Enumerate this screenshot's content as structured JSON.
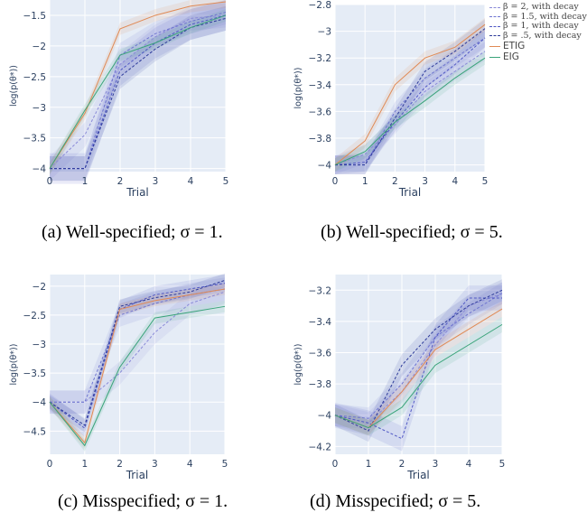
{
  "captions": [
    "(a) Well-specified; σ = 1.",
    "(b) Well-specified; σ = 5.",
    "(c) Misspecified; σ = 1.",
    "(d) Misspecified; σ = 5."
  ],
  "colors": {
    "b2": "#8a8ad8",
    "b15": "#6f75d0",
    "b1": "#4f57c4",
    "b05": "#2c3a9a",
    "ETIG": "#e08a55",
    "EIG": "#3aa47a",
    "plotbg": "#e5ecf6",
    "grid": "#ffffff",
    "tick": "#2a3f5f"
  },
  "legend": [
    {
      "key": "b2",
      "label": "β = 2, with decay",
      "dash": true
    },
    {
      "key": "b15",
      "label": "β = 1.5, with decay",
      "dash": true
    },
    {
      "key": "b1",
      "label": "β = 1, with decay",
      "dash": true
    },
    {
      "key": "b05",
      "label": "β = .5, with decay",
      "dash": true
    },
    {
      "key": "ETIG",
      "label": "ETIG",
      "dash": false
    },
    {
      "key": "EIG",
      "label": "EIG",
      "dash": false
    }
  ],
  "chart_data": [
    {
      "type": "line",
      "xlabel": "Trial",
      "ylabel": "log(p(θ*))",
      "x": [
        0,
        1,
        2,
        3,
        4,
        5
      ],
      "xlim": [
        0,
        5
      ],
      "ylim": [
        -4.05,
        -1.25
      ],
      "yticks": [
        -4,
        -3.5,
        -3,
        -2.5,
        -2,
        -1.5
      ],
      "ytick_labels": [
        "−4",
        "−3.5",
        "−3",
        "−2.5",
        "−2",
        "−1.5"
      ],
      "series": [
        {
          "key": "b2",
          "values": [
            -4,
            -3.45,
            -2.3,
            -1.85,
            -1.55,
            -1.5
          ],
          "band": 0.2
        },
        {
          "key": "b15",
          "values": [
            -4,
            -4,
            -2.15,
            -1.8,
            -1.6,
            -1.45
          ],
          "band": 0.2
        },
        {
          "key": "b1",
          "values": [
            -4,
            -4,
            -2.4,
            -1.95,
            -1.65,
            -1.5
          ],
          "band": 0.25
        },
        {
          "key": "b05",
          "values": [
            -4,
            -4,
            -2.5,
            -2.05,
            -1.7,
            -1.55
          ],
          "band": 0.2
        },
        {
          "key": "ETIG",
          "values": [
            -4,
            -3.1,
            -1.72,
            -1.5,
            -1.35,
            -1.28
          ],
          "band": 0.1
        },
        {
          "key": "EIG",
          "values": [
            -4,
            -3.05,
            -2.15,
            -1.95,
            -1.7,
            -1.5
          ],
          "band": 0.1
        }
      ]
    },
    {
      "type": "line",
      "xlabel": "Trial",
      "ylabel": "log(p(θ*))",
      "x": [
        0,
        1,
        2,
        3,
        4,
        5
      ],
      "xlim": [
        0,
        5
      ],
      "ylim": [
        -4.05,
        -2.8
      ],
      "yticks": [
        -4,
        -3.8,
        -3.6,
        -3.4,
        -3.2,
        -3,
        -2.8
      ],
      "ytick_labels": [
        "−4",
        "−3.8",
        "−3.6",
        "−3.4",
        "−3.2",
        "−3",
        "−2.8"
      ],
      "series": [
        {
          "key": "b2",
          "values": [
            -4,
            -3.92,
            -3.7,
            -3.45,
            -3.3,
            -3.15
          ],
          "band": 0.07
        },
        {
          "key": "b15",
          "values": [
            -4,
            -4,
            -3.6,
            -3.35,
            -3.2,
            -3.05
          ],
          "band": 0.07
        },
        {
          "key": "b1",
          "values": [
            -4,
            -3.98,
            -3.68,
            -3.42,
            -3.25,
            -3.05
          ],
          "band": 0.07
        },
        {
          "key": "b05",
          "values": [
            -4,
            -4,
            -3.65,
            -3.3,
            -3.15,
            -2.98
          ],
          "band": 0.07
        },
        {
          "key": "ETIG",
          "values": [
            -4,
            -3.82,
            -3.4,
            -3.2,
            -3.12,
            -2.95
          ],
          "band": 0.05
        },
        {
          "key": "EIG",
          "values": [
            -4,
            -3.9,
            -3.68,
            -3.52,
            -3.35,
            -3.2
          ],
          "band": 0.05
        }
      ]
    },
    {
      "type": "line",
      "xlabel": "Trial",
      "ylabel": "log(p(θ*))",
      "x": [
        0,
        1,
        2,
        3,
        4,
        5
      ],
      "xlim": [
        0,
        5
      ],
      "ylim": [
        -4.9,
        -1.8
      ],
      "yticks": [
        -4.5,
        -4,
        -3.5,
        -3,
        -2.5,
        -2
      ],
      "ytick_labels": [
        "−4.5",
        "−4",
        "−3.5",
        "−3",
        "−2.5",
        "−2"
      ],
      "series": [
        {
          "key": "b2",
          "values": [
            -4,
            -4,
            -3.5,
            -2.8,
            -2.3,
            -2.1
          ],
          "band": 0.2
        },
        {
          "key": "b15",
          "values": [
            -4,
            -4,
            -2.5,
            -2.3,
            -2.15,
            -2.05
          ],
          "band": 0.2
        },
        {
          "key": "b1",
          "values": [
            -4,
            -4.45,
            -2.4,
            -2.15,
            -2.05,
            -1.95
          ],
          "band": 0.15
        },
        {
          "key": "b05",
          "values": [
            -4,
            -4.4,
            -2.35,
            -2.2,
            -2.1,
            -1.9
          ],
          "band": 0.12
        },
        {
          "key": "ETIG",
          "values": [
            -4,
            -4.7,
            -2.4,
            -2.25,
            -2.15,
            -2.05
          ],
          "band": 0.1
        },
        {
          "key": "EIG",
          "values": [
            -4,
            -4.75,
            -3.4,
            -2.55,
            -2.45,
            -2.35
          ],
          "band": 0.1
        }
      ]
    },
    {
      "type": "line",
      "xlabel": "Trial",
      "ylabel": "log(p(θ*))",
      "x": [
        0,
        1,
        2,
        3,
        4,
        5
      ],
      "xlim": [
        0,
        5
      ],
      "ylim": [
        -4.25,
        -3.1
      ],
      "yticks": [
        -4.2,
        -4,
        -3.8,
        -3.6,
        -3.4,
        -3.2
      ],
      "ytick_labels": [
        "−4.2",
        "−4",
        "−3.8",
        "−3.6",
        "−3.4",
        "−3.2"
      ],
      "series": [
        {
          "key": "b2",
          "values": [
            -4,
            -4.05,
            -3.85,
            -3.55,
            -3.3,
            -3.22
          ],
          "band": 0.07
        },
        {
          "key": "b15",
          "values": [
            -4,
            -4.02,
            -3.8,
            -3.5,
            -3.35,
            -3.22
          ],
          "band": 0.07
        },
        {
          "key": "b1",
          "values": [
            -4,
            -4.05,
            -4.15,
            -3.5,
            -3.25,
            -3.25
          ],
          "band": 0.08
        },
        {
          "key": "b05",
          "values": [
            -4,
            -4.1,
            -3.68,
            -3.45,
            -3.3,
            -3.2
          ],
          "band": 0.07
        },
        {
          "key": "ETIG",
          "values": [
            -4,
            -4.08,
            -3.85,
            -3.58,
            -3.45,
            -3.32
          ],
          "band": 0.05
        },
        {
          "key": "EIG",
          "values": [
            -4,
            -4.08,
            -3.95,
            -3.68,
            -3.55,
            -3.42
          ],
          "band": 0.05
        }
      ]
    }
  ]
}
